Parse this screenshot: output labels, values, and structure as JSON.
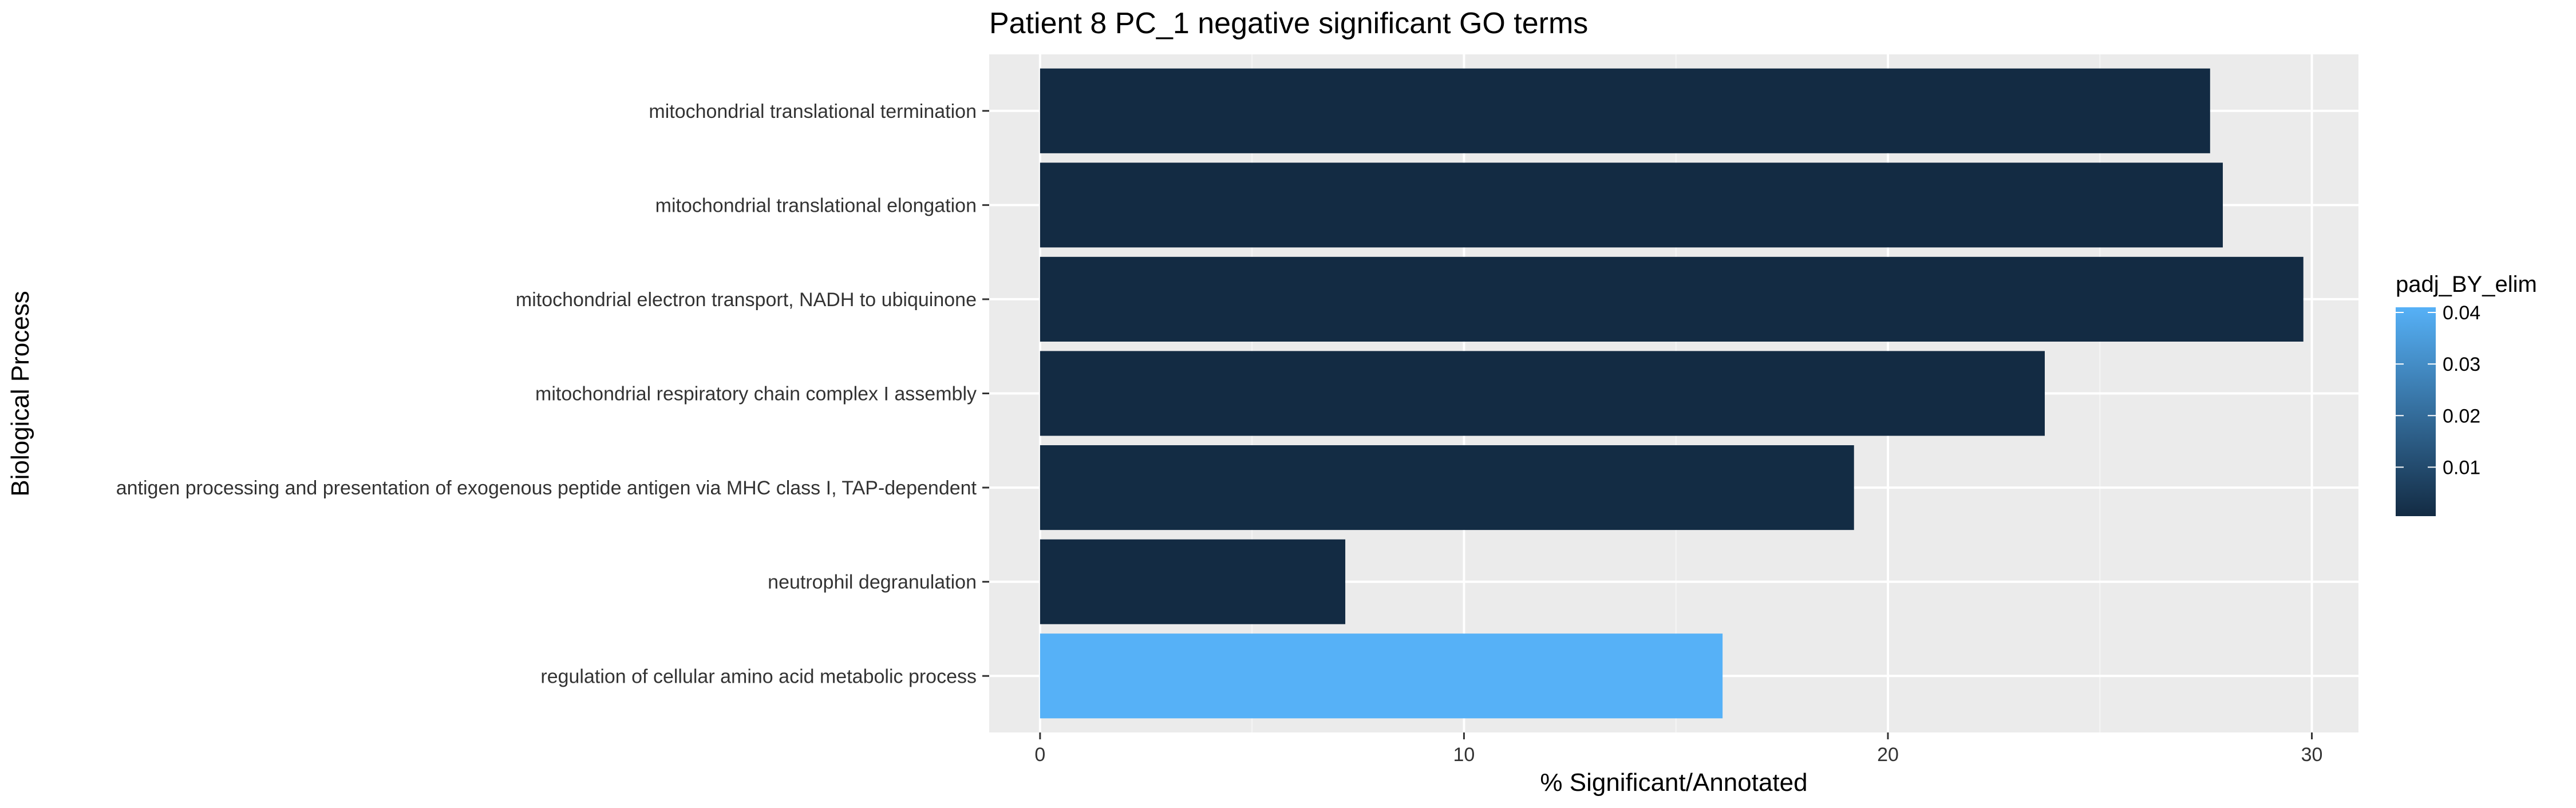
{
  "chart_data": {
    "type": "bar",
    "orientation": "horizontal",
    "title": "Patient 8 PC_1 negative significant GO terms",
    "xlabel": "% Significant/Annotated",
    "ylabel": "Biological Process",
    "xlim": [
      -1.2,
      31.1
    ],
    "x_ticks": [
      0,
      10,
      20,
      30
    ],
    "grid": true,
    "categories": [
      "mitochondrial translational termination",
      "mitochondrial translational elongation",
      "mitochondrial electron transport, NADH to ubiquinone",
      "mitochondrial respiratory chain complex I assembly",
      "antigen processing and presentation of exogenous peptide antigen via MHC class I, TAP-dependent",
      "neutrophil degranulation",
      "regulation of cellular amino acid metabolic process"
    ],
    "values": [
      27.6,
      27.9,
      29.8,
      23.7,
      19.2,
      7.2,
      16.1
    ],
    "color_values": [
      0.0005,
      0.0005,
      0.0005,
      0.0005,
      0.0008,
      0.0005,
      0.041
    ],
    "legend": {
      "title": "padj_BY_elim",
      "ticks": [
        0.04,
        0.03,
        0.02,
        0.01
      ],
      "range": [
        0.0005,
        0.041
      ],
      "color_low": "#132B43",
      "color_high": "#56B1F7",
      "placement": "right"
    }
  }
}
